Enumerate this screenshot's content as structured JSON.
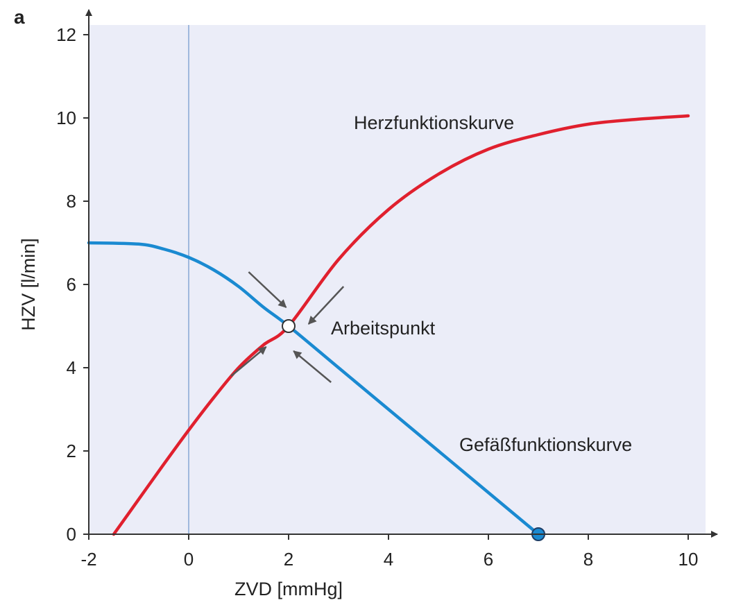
{
  "panel_label": "a",
  "chart_data": {
    "type": "line",
    "xlabel": "ZVD [mmHg]",
    "ylabel": "HZV [l/min]",
    "xlim": [
      -2,
      10
    ],
    "ylim": [
      0,
      12
    ],
    "x_ticks": [
      "-2",
      "0",
      "2",
      "4",
      "6",
      "8",
      "10"
    ],
    "y_ticks": [
      "0",
      "2",
      "4",
      "6",
      "8",
      "10",
      "12"
    ],
    "grid": false,
    "background_color": "#ebedf8",
    "reference_line_x": 0,
    "series": [
      {
        "name": "Herzfunktionskurve",
        "color": "#e0202e",
        "points": [
          [
            -1.5,
            0
          ],
          [
            -1.0,
            0.84
          ],
          [
            -0.5,
            1.68
          ],
          [
            0,
            2.5
          ],
          [
            0.5,
            3.28
          ],
          [
            1.0,
            4.0
          ],
          [
            1.5,
            4.55
          ],
          [
            2.0,
            5.0
          ],
          [
            3.0,
            6.6
          ],
          [
            4.0,
            7.8
          ],
          [
            5.0,
            8.65
          ],
          [
            6.0,
            9.25
          ],
          [
            7.0,
            9.6
          ],
          [
            8.0,
            9.85
          ],
          [
            9.0,
            9.97
          ],
          [
            10.0,
            10.05
          ]
        ]
      },
      {
        "name": "Gefäßfunktionskurve",
        "color": "#1a8ad1",
        "points": [
          [
            -2,
            7.0
          ],
          [
            -1.0,
            6.97
          ],
          [
            -0.5,
            6.85
          ],
          [
            0,
            6.65
          ],
          [
            0.5,
            6.35
          ],
          [
            1.0,
            5.95
          ],
          [
            1.5,
            5.45
          ],
          [
            2.0,
            5.0
          ],
          [
            3.0,
            4.0
          ],
          [
            4.0,
            3.0
          ],
          [
            5.0,
            2.0
          ],
          [
            6.0,
            1.0
          ],
          [
            7.0,
            0
          ]
        ]
      }
    ],
    "annotations": [
      {
        "text": "Arbeitspunkt",
        "x": 2,
        "y": 5,
        "marker": "open-circle"
      },
      {
        "text": "",
        "x": 7,
        "y": 0,
        "marker": "filled-circle",
        "color": "#1a8ad1"
      }
    ],
    "arrows": [
      {
        "from": [
          1.2,
          6.3
        ],
        "to": [
          1.95,
          5.45
        ]
      },
      {
        "from": [
          3.1,
          5.95
        ],
        "to": [
          2.4,
          5.05
        ]
      },
      {
        "from": [
          0.85,
          3.8
        ],
        "to": [
          1.55,
          4.5
        ]
      },
      {
        "from": [
          2.85,
          3.65
        ],
        "to": [
          2.1,
          4.4
        ]
      }
    ],
    "arrow_color": "#555555"
  }
}
